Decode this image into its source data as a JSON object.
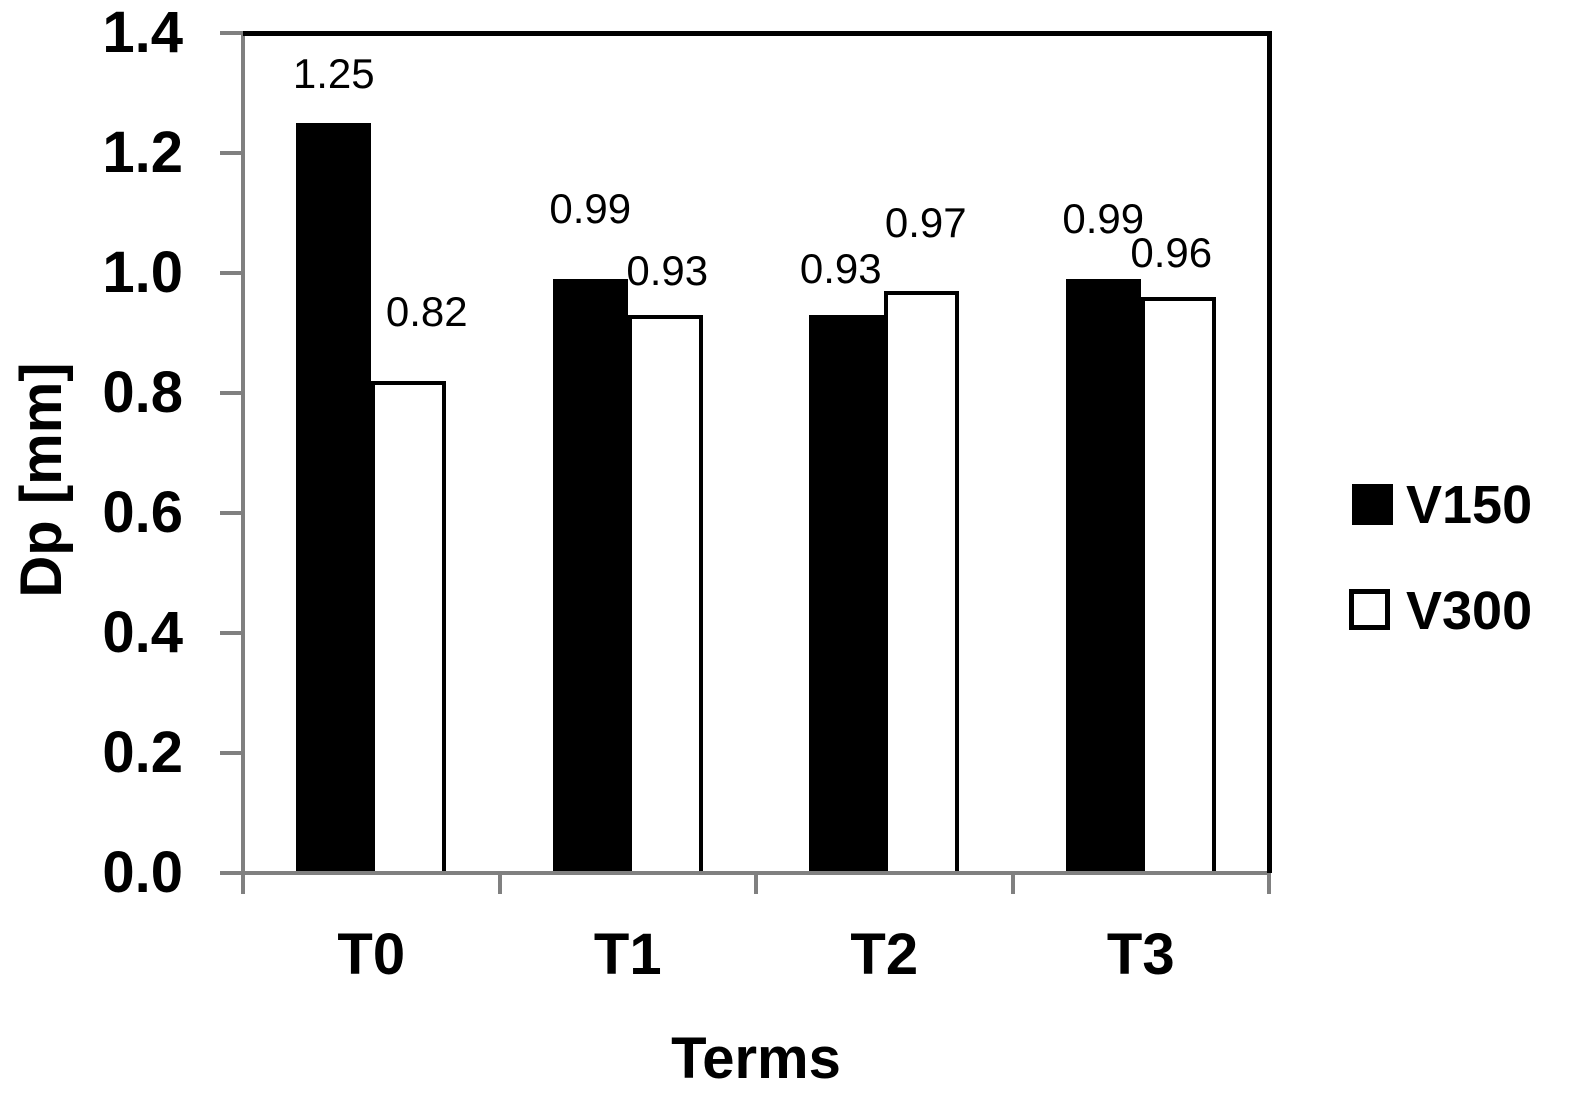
{
  "chart_data": {
    "type": "bar",
    "title": "",
    "xlabel": "Terms",
    "ylabel": "Dp [mm]",
    "categories": [
      "T0",
      "T1",
      "T2",
      "T3"
    ],
    "series": [
      {
        "name": "V150",
        "fill": "#000000",
        "values": [
          1.25,
          0.99,
          0.93,
          0.99
        ],
        "labels": [
          "1.25",
          "0.99",
          "0.93",
          "0.99"
        ]
      },
      {
        "name": "V300",
        "fill": "#ffffff",
        "values": [
          0.82,
          0.93,
          0.97,
          0.96
        ],
        "labels": [
          "0.82",
          "0.93",
          "0.97",
          "0.96"
        ]
      }
    ],
    "y_ticks": [
      "0.0",
      "0.2",
      "0.4",
      "0.6",
      "0.8",
      "1.0",
      "1.2",
      "1.4"
    ],
    "ylim": [
      0,
      1.4
    ],
    "grid": false,
    "legend_position": "right",
    "colors": {
      "axis": "#808080",
      "border": "#000000",
      "text": "#000000",
      "background": "#ffffff"
    }
  }
}
